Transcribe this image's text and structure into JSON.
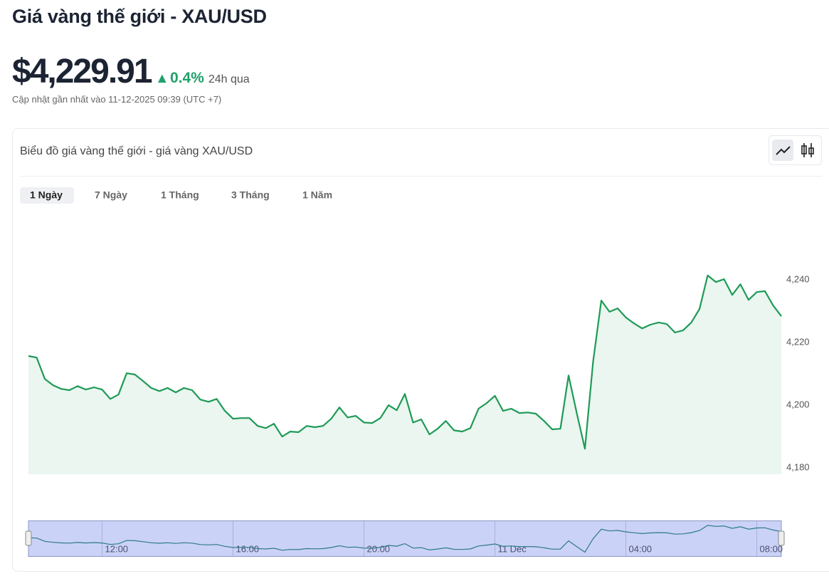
{
  "title": "Giá vàng thế giới - XAU/USD",
  "price": "$4,229.91",
  "change": "0.4%",
  "change_period": "24h qua",
  "updated": "Cập nhật gần nhất vào 11-12-2025 09:39 (UTC +7)",
  "card_title": "Biểu đồ giá vàng thế giới - giá vàng XAU/USD",
  "tabs": [
    "1 Ngày",
    "7 Ngày",
    "1 Tháng",
    "3 Tháng",
    "1 Năm"
  ],
  "chart_data": {
    "type": "line",
    "color": "#1e9a57",
    "area_color": "#eaf6ef",
    "x": [
      9.75,
      10,
      10.25,
      10.5,
      10.75,
      11,
      11.25,
      11.5,
      11.75,
      12,
      12.25,
      12.5,
      12.75,
      13,
      13.25,
      13.5,
      13.75,
      14,
      14.25,
      14.5,
      14.75,
      15,
      15.25,
      15.5,
      15.75,
      16,
      16.25,
      16.5,
      16.75,
      17,
      17.25,
      17.5,
      17.75,
      18,
      18.25,
      18.5,
      18.75,
      19,
      19.25,
      19.5,
      19.75,
      20,
      20.25,
      20.5,
      20.75,
      21,
      21.25,
      21.5,
      21.75,
      22,
      22.25,
      22.5,
      22.75,
      23,
      23.25,
      23.5,
      23.75,
      24,
      24.25,
      24.5,
      24.75,
      25,
      25.25,
      25.5,
      25.75,
      26,
      26.25,
      26.5,
      26.75,
      27,
      27.25,
      27.5,
      27.75,
      28,
      28.25,
      28.5,
      28.75,
      29,
      29.25,
      29.5,
      29.75,
      30,
      30.25,
      30.5,
      30.75,
      31,
      31.25,
      31.5,
      31.75,
      32,
      32.25,
      32.5,
      32.75
    ],
    "values": [
      4215.7,
      4215.2,
      4208.4,
      4206.4,
      4205.2,
      4204.8,
      4206.1,
      4205.0,
      4205.7,
      4205.0,
      4202.0,
      4203.4,
      4210.2,
      4209.8,
      4207.7,
      4205.5,
      4204.5,
      4205.5,
      4204.1,
      4205.5,
      4204.8,
      4201.8,
      4201.1,
      4202.0,
      4198.2,
      4195.7,
      4195.9,
      4195.9,
      4193.4,
      4192.7,
      4194.1,
      4190.0,
      4191.6,
      4191.4,
      4193.4,
      4193.0,
      4193.4,
      4195.7,
      4199.3,
      4196.1,
      4196.6,
      4194.5,
      4194.3,
      4195.9,
      4200.0,
      4198.4,
      4203.6,
      4194.5,
      4195.5,
      4190.7,
      4192.5,
      4195.0,
      4192.0,
      4191.6,
      4192.7,
      4198.9,
      4200.7,
      4203.0,
      4198.2,
      4198.9,
      4197.5,
      4197.7,
      4197.3,
      4195.0,
      4192.3,
      4192.5,
      4209.5,
      4197.5,
      4186.1,
      4213.9,
      4233.4,
      4229.8,
      4230.9,
      4228.0,
      4226.1,
      4224.5,
      4225.7,
      4226.4,
      4225.9,
      4223.2,
      4223.9,
      4226.4,
      4230.7,
      4241.4,
      4239.3,
      4240.2,
      4235.2,
      4238.6,
      4233.6,
      4236.1,
      4236.4,
      4231.8,
      4228.4
    ],
    "xlim": [
      9.75,
      32.75
    ],
    "ylim": [
      4178,
      4250
    ],
    "yticks": [
      {
        "value": 4180,
        "label": "4,180"
      },
      {
        "value": 4200,
        "label": "4,200"
      },
      {
        "value": 4220,
        "label": "4,220"
      },
      {
        "value": 4240,
        "label": "4,240"
      }
    ],
    "xticks": [
      {
        "value": 12,
        "label": "12:00"
      },
      {
        "value": 16,
        "label": "16:00"
      },
      {
        "value": 20,
        "label": "20:00"
      },
      {
        "value": 24,
        "label": "11 Dec"
      },
      {
        "value": 28,
        "label": "04:00"
      },
      {
        "value": 32,
        "label": "08:00"
      }
    ],
    "grid": false
  }
}
